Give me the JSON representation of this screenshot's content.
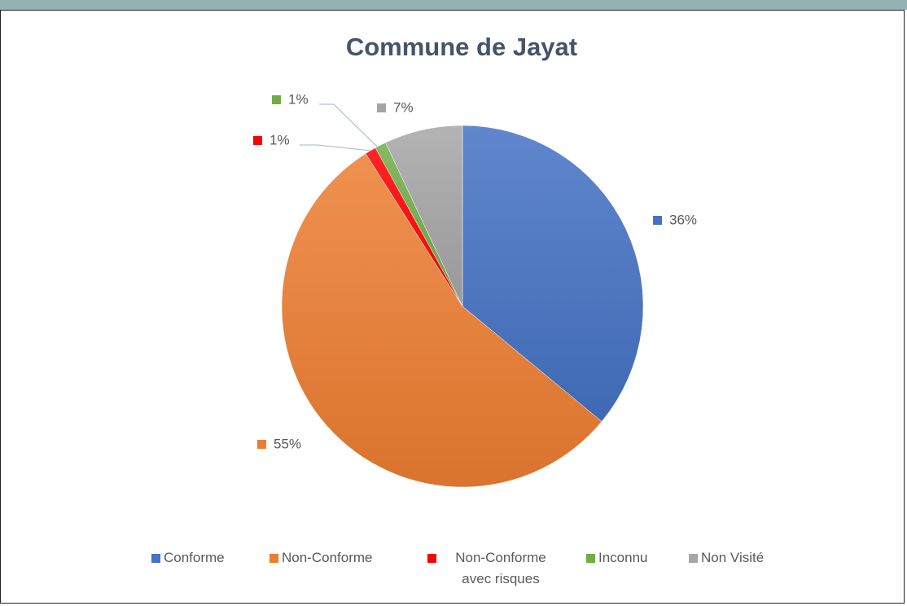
{
  "chart_data": {
    "type": "pie",
    "title": "Commune de Jayat",
    "categories": [
      "Conforme",
      "Non-Conforme",
      "Non-Conforme avec risques",
      "Inconnu",
      "Non Visité"
    ],
    "values": [
      36,
      55,
      1,
      1,
      7
    ],
    "value_labels": [
      "36%",
      "55%",
      "1%",
      "1%",
      "7%"
    ],
    "colors": [
      "#4472c4",
      "#ed7d31",
      "#ff0000",
      "#70ad47",
      "#a5a5a5"
    ],
    "legend": "bottom"
  }
}
